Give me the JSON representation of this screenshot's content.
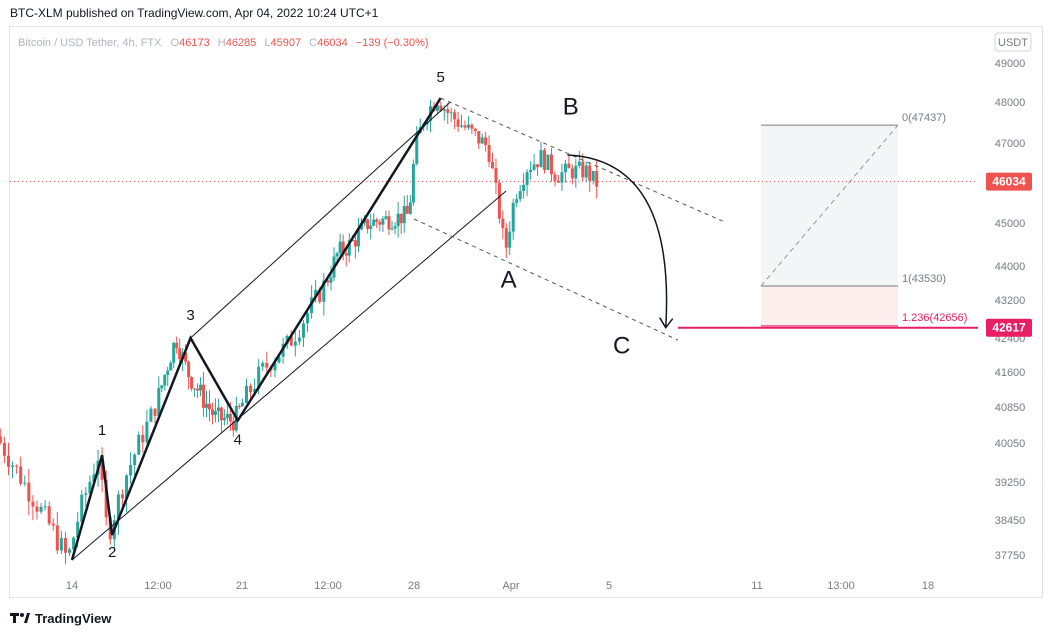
{
  "header": {
    "publish_line": "BTC-XLM published on TradingView.com, Apr 04, 2022 10:24 UTC+1"
  },
  "legend": {
    "symbol": "Bitcoin / USD Tether, 4h, FTX",
    "o_label": "O",
    "o_value": "46173",
    "h_label": "H",
    "h_value": "46285",
    "l_label": "L",
    "l_value": "45907",
    "c_label": "C",
    "c_value": "46034",
    "change": "−139 (−0.30%)"
  },
  "currency_button": "USDT",
  "footer": {
    "brand": "TradingView"
  },
  "colors": {
    "up": "#26a69a",
    "down": "#ef5350",
    "target": "#e91e63",
    "axis_text": "#787b86"
  },
  "chart_data": {
    "type": "candlestick",
    "title": "Bitcoin / USD Tether, 4h, FTX",
    "y_axis": {
      "ticks": [
        {
          "label": "49000",
          "value": 49000
        },
        {
          "label": "48000",
          "value": 48000
        },
        {
          "label": "47000",
          "value": 47000
        },
        {
          "label": "45000",
          "value": 45000
        },
        {
          "label": "44000",
          "value": 44000
        },
        {
          "label": "43200",
          "value": 43200
        },
        {
          "label": "42400",
          "value": 42400
        },
        {
          "label": "41600",
          "value": 41600
        },
        {
          "label": "40850",
          "value": 40850
        },
        {
          "label": "40050",
          "value": 40050
        },
        {
          "label": "39250",
          "value": 39250
        },
        {
          "label": "38450",
          "value": 38450
        },
        {
          "label": "37750",
          "value": 37750
        }
      ]
    },
    "x_axis": {
      "ticks": [
        {
          "label": "14",
          "t": 0
        },
        {
          "label": "12:00",
          "t": 3
        },
        {
          "label": "21",
          "t": 7
        },
        {
          "label": "12:00",
          "t": 10
        },
        {
          "label": "28",
          "t": 14
        },
        {
          "label": "Apr",
          "t": 18
        },
        {
          "label": "5",
          "t": 22
        },
        {
          "label": "11",
          "t": 28
        },
        {
          "label": "13:00",
          "t": 31
        },
        {
          "label": "18",
          "t": 35
        }
      ]
    },
    "last_price": 46034,
    "target_price": 42617,
    "candle_anchors": [
      [
        -2.5,
        40200
      ],
      [
        -1.6,
        39300
      ],
      [
        -0.6,
        38300
      ],
      [
        0.0,
        37650
      ],
      [
        0.4,
        38600
      ],
      [
        1.05,
        39800
      ],
      [
        1.3,
        38500
      ],
      [
        1.4,
        38150
      ],
      [
        2.0,
        39350
      ],
      [
        3.0,
        40800
      ],
      [
        4.0,
        42400
      ],
      [
        4.55,
        41600
      ],
      [
        5.2,
        41100
      ],
      [
        5.9,
        40600
      ],
      [
        6.8,
        40550
      ],
      [
        7.8,
        41600
      ],
      [
        8.8,
        42300
      ],
      [
        9.8,
        43300
      ],
      [
        10.6,
        44300
      ],
      [
        11.2,
        44500
      ],
      [
        12.0,
        45000
      ],
      [
        13.9,
        45200
      ],
      [
        14.2,
        46900
      ],
      [
        14.6,
        47700
      ],
      [
        15.1,
        48100
      ],
      [
        15.6,
        47700
      ],
      [
        16.5,
        47250
      ],
      [
        17.2,
        46900
      ],
      [
        17.6,
        45500
      ],
      [
        17.9,
        44300
      ],
      [
        18.3,
        45700
      ],
      [
        18.8,
        46400
      ],
      [
        19.4,
        46650
      ],
      [
        20.0,
        46200
      ],
      [
        20.6,
        46300
      ],
      [
        21.2,
        46300
      ],
      [
        21.6,
        46000
      ]
    ],
    "waves": [
      {
        "label": "1",
        "t": 1.05,
        "price": 39800
      },
      {
        "label": "2",
        "t": 1.4,
        "price": 38150
      },
      {
        "label": "3",
        "t": 4.55,
        "price": 42400
      },
      {
        "label": "4",
        "t": 6.8,
        "price": 40550
      },
      {
        "label": "5",
        "t": 15.1,
        "price": 48100
      },
      {
        "label": "A",
        "t": 17.9,
        "price": 44200
      },
      {
        "label": "B",
        "t": 20.6,
        "price": 47400
      },
      {
        "label": "C",
        "t": 24.3,
        "price": 42500
      }
    ],
    "fibonacci": [
      {
        "label": "0(47437)",
        "level": 0,
        "price": 47437
      },
      {
        "label": "1(43530)",
        "level": 1,
        "price": 43530
      },
      {
        "label": "1.236(42656)",
        "level": 1.236,
        "price": 42656
      }
    ]
  }
}
